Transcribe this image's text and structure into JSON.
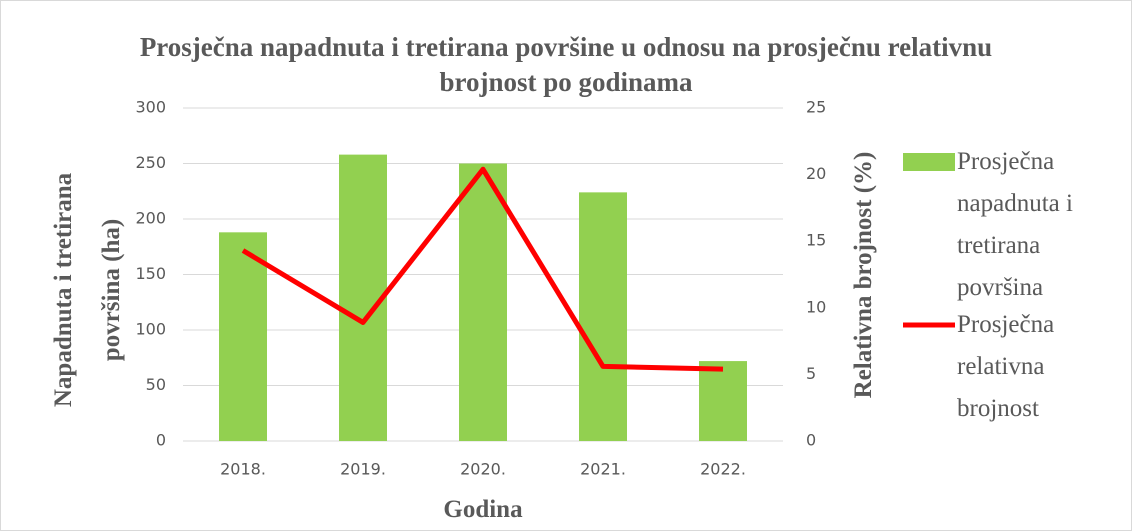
{
  "chart_data": {
    "type": "bar_line",
    "title": "Prosječna napadnuta i tretirana površine u odnosu na prosječnu relativnu brojnost po godinama",
    "x_label": "Godina",
    "y_label": "Napadnuta i tretirana površina (ha)",
    "y2_label": "Relativna brojnost (%)",
    "categories": [
      "2018.",
      "2019.",
      "2020.",
      "2021.",
      "2022."
    ],
    "series": [
      {
        "name": "Prosječna napadnuta i tretirana površina",
        "type": "bar",
        "color": "#92d050",
        "values": [
          188,
          258,
          250,
          224,
          72
        ]
      },
      {
        "name": "Prosječna relativna brojnost",
        "type": "line",
        "axis": "y2",
        "color": "#ff0000",
        "values": [
          14.3,
          8.9,
          20.4,
          5.6,
          5.4
        ]
      }
    ],
    "ylim": [
      0,
      300
    ],
    "yticks": [
      0,
      50,
      100,
      150,
      200,
      250,
      300
    ],
    "y2lim": [
      0,
      25
    ],
    "y2ticks": [
      0,
      5,
      10,
      15,
      20,
      25
    ],
    "grid": true,
    "legend": "right"
  }
}
